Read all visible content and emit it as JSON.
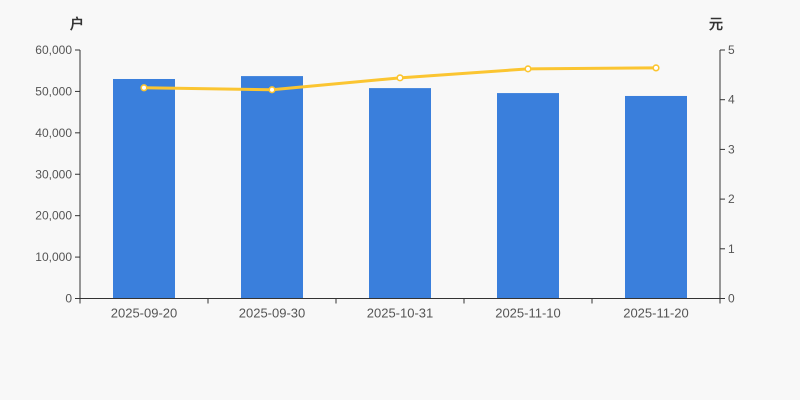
{
  "page": {
    "background": "#f8f8f8"
  },
  "chart_data": {
    "type": "bar+line",
    "title": "",
    "legend_position": "none",
    "grid": false,
    "categories": [
      "2025-09-20",
      "2025-09-30",
      "2025-10-31",
      "2025-11-10",
      "2025-11-20"
    ],
    "series": [
      {
        "name": "户",
        "type": "bar",
        "y_axis": "left",
        "color": "#3a7fdc",
        "values": [
          53000,
          53700,
          50800,
          49600,
          48900
        ]
      },
      {
        "name": "元",
        "type": "line",
        "y_axis": "right",
        "color": "#fbc531",
        "marker": "empty-circle",
        "marker_fill": "#ffffff",
        "values": [
          4.24,
          4.2,
          4.44,
          4.62,
          4.64
        ]
      }
    ],
    "axis_left": {
      "unit_label": "户",
      "min": 0,
      "max": 60000,
      "tick_interval": 10000,
      "tick_labels": [
        "0",
        "10,000",
        "20,000",
        "30,000",
        "40,000",
        "50,000",
        "60,000"
      ]
    },
    "axis_right": {
      "unit_label": "元",
      "min": 0,
      "max": 5,
      "tick_interval": 1,
      "tick_labels": [
        "0",
        "1",
        "2",
        "3",
        "4",
        "5"
      ]
    },
    "x_axis": {
      "tick_labels": [
        "2025-09-20",
        "2025-09-30",
        "2025-10-31",
        "2025-11-10",
        "2025-11-20"
      ]
    },
    "colors": {
      "background": "#f8f8f8",
      "axis_line": "#333333",
      "tick_text": "#555555",
      "unit_text": "#333333",
      "bar": "#3a7fdc",
      "line": "#fbc531",
      "marker_fill": "#ffffff"
    }
  }
}
